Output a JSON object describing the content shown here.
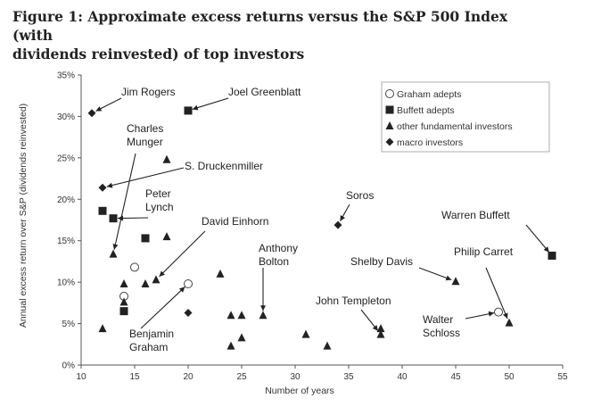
{
  "figure_title_line1": "Figure 1: Approximate excess returns versus the S&P 500 Index (with",
  "figure_title_line2": "dividends reinvested) of top investors",
  "chart_data": {
    "type": "scatter",
    "title": "Figure 1: Approximate excess returns versus the S&P 500 Index (with dividends reinvested) of top investors",
    "xlabel": "Number of years",
    "ylabel": "Annual excess return over S&P (dividends reinvested)",
    "xlim": [
      10,
      55
    ],
    "ylim": [
      0,
      35
    ],
    "xticks": [
      "10",
      "15",
      "20",
      "25",
      "30",
      "35",
      "40",
      "45",
      "50",
      "55"
    ],
    "yticks": [
      "0%",
      "5%",
      "10%",
      "15%",
      "20%",
      "25%",
      "30%",
      "35%"
    ],
    "grid": false,
    "legend_position": "top-right",
    "series": [
      {
        "name": "Graham adepts",
        "marker": "circle-open",
        "color": "#444444",
        "points": [
          [
            15,
            11.8
          ],
          [
            14,
            8.3
          ],
          [
            20,
            9.8
          ],
          [
            49,
            6.4
          ]
        ]
      },
      {
        "name": "Buffett adepts",
        "marker": "square",
        "color": "#222222",
        "points": [
          [
            20,
            30.7
          ],
          [
            12,
            18.6
          ],
          [
            13,
            17.7
          ],
          [
            16,
            15.3
          ],
          [
            14,
            6.5
          ],
          [
            54,
            13.2
          ]
        ]
      },
      {
        "name": "other fundamental investors",
        "marker": "triangle",
        "color": "#222222",
        "points": [
          [
            18,
            24.8
          ],
          [
            13,
            13.4
          ],
          [
            18,
            15.5
          ],
          [
            14,
            9.8
          ],
          [
            16,
            9.8
          ],
          [
            14,
            7.6
          ],
          [
            17,
            10.3
          ],
          [
            12,
            4.4
          ],
          [
            23,
            11.0
          ],
          [
            24,
            6.0
          ],
          [
            25,
            6.0
          ],
          [
            25,
            3.3
          ],
          [
            24,
            2.3
          ],
          [
            27,
            6.0
          ],
          [
            31,
            3.7
          ],
          [
            33,
            2.3
          ],
          [
            38,
            4.4
          ],
          [
            38,
            3.7
          ],
          [
            45,
            10.1
          ],
          [
            50,
            5.1
          ]
        ]
      },
      {
        "name": "macro investors",
        "marker": "diamond",
        "color": "#222222",
        "points": [
          [
            11,
            30.4
          ],
          [
            12,
            21.4
          ],
          [
            34,
            16.9
          ],
          [
            20,
            6.3
          ]
        ]
      }
    ],
    "annotations": [
      {
        "lines": [
          "Jim Rogers"
        ],
        "point": [
          11,
          30.4
        ]
      },
      {
        "lines": [
          "Joel Greenblatt"
        ],
        "point": [
          20,
          30.7
        ]
      },
      {
        "lines": [
          "Charles",
          "Munger"
        ],
        "point": [
          13,
          13.4
        ]
      },
      {
        "lines": [
          "S. Druckenmiller"
        ],
        "point": [
          12,
          21.4
        ]
      },
      {
        "lines": [
          "Peter",
          "Lynch"
        ],
        "point": [
          13,
          17.7
        ]
      },
      {
        "lines": [
          "David Einhorn"
        ],
        "point": [
          17,
          10.3
        ]
      },
      {
        "lines": [
          "Soros"
        ],
        "point": [
          34,
          16.9
        ]
      },
      {
        "lines": [
          "Warren Buffett"
        ],
        "point": [
          54,
          13.2
        ]
      },
      {
        "lines": [
          "Anthony",
          "Bolton"
        ],
        "point": [
          27,
          6.0
        ]
      },
      {
        "lines": [
          "Shelby Davis"
        ],
        "point": [
          45,
          10.1
        ]
      },
      {
        "lines": [
          "Philip Carret"
        ],
        "point": [
          50,
          5.1
        ]
      },
      {
        "lines": [
          "Benjamin",
          "Graham"
        ],
        "point": [
          20,
          9.8
        ]
      },
      {
        "lines": [
          "John Templeton"
        ],
        "point": [
          38,
          3.7
        ]
      },
      {
        "lines": [
          "Walter",
          "Schloss"
        ],
        "point": [
          49,
          6.4
        ]
      }
    ]
  }
}
